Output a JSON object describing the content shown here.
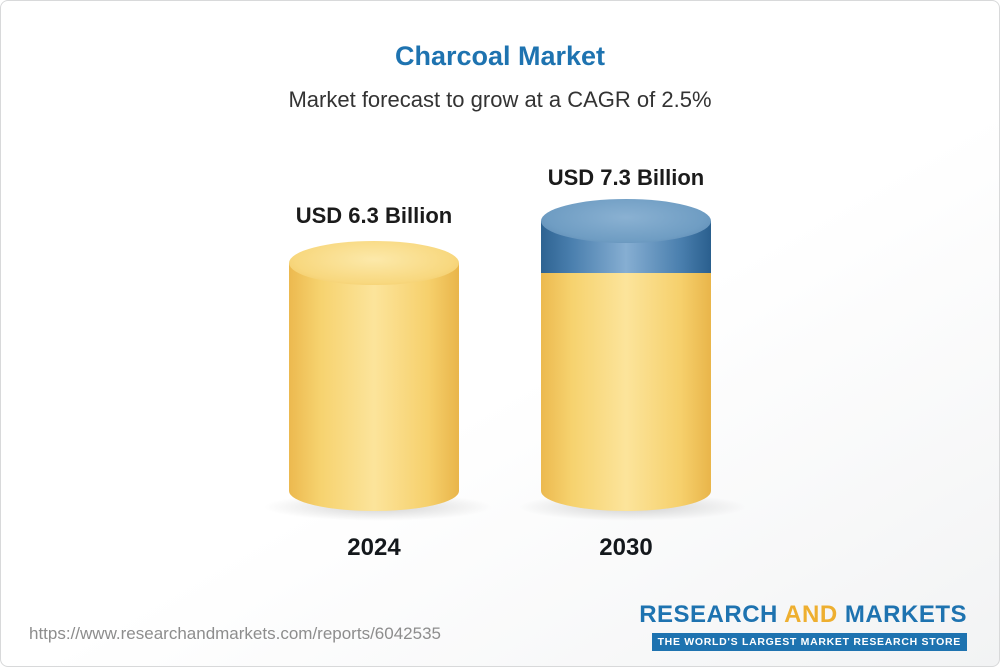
{
  "header": {
    "title": "Charcoal Market",
    "subtitle": "Market forecast to grow at a CAGR of 2.5%"
  },
  "chart_data": {
    "type": "bar",
    "categories": [
      "2024",
      "2030"
    ],
    "values": [
      6.3,
      7.3
    ],
    "value_labels": [
      "USD 6.3 Billion",
      "USD 7.3 Billion"
    ],
    "unit": "USD Billion",
    "title": "Charcoal Market",
    "subtitle": "Market forecast to grow at a CAGR of 2.5%",
    "cagr": "2.5%",
    "legend_position": "none",
    "grid": false,
    "colors": {
      "bar_fill": "#f6d06c",
      "growth_segment_fill": "#4a7fae",
      "title_color": "#1e73b0"
    }
  },
  "footer": {
    "url": "https://www.researchandmarkets.com/reports/6042535",
    "brand": {
      "research": "RESEARCH",
      "and": "AND",
      "markets": "MARKETS",
      "tagline": "THE WORLD'S LARGEST MARKET RESEARCH STORE"
    }
  }
}
